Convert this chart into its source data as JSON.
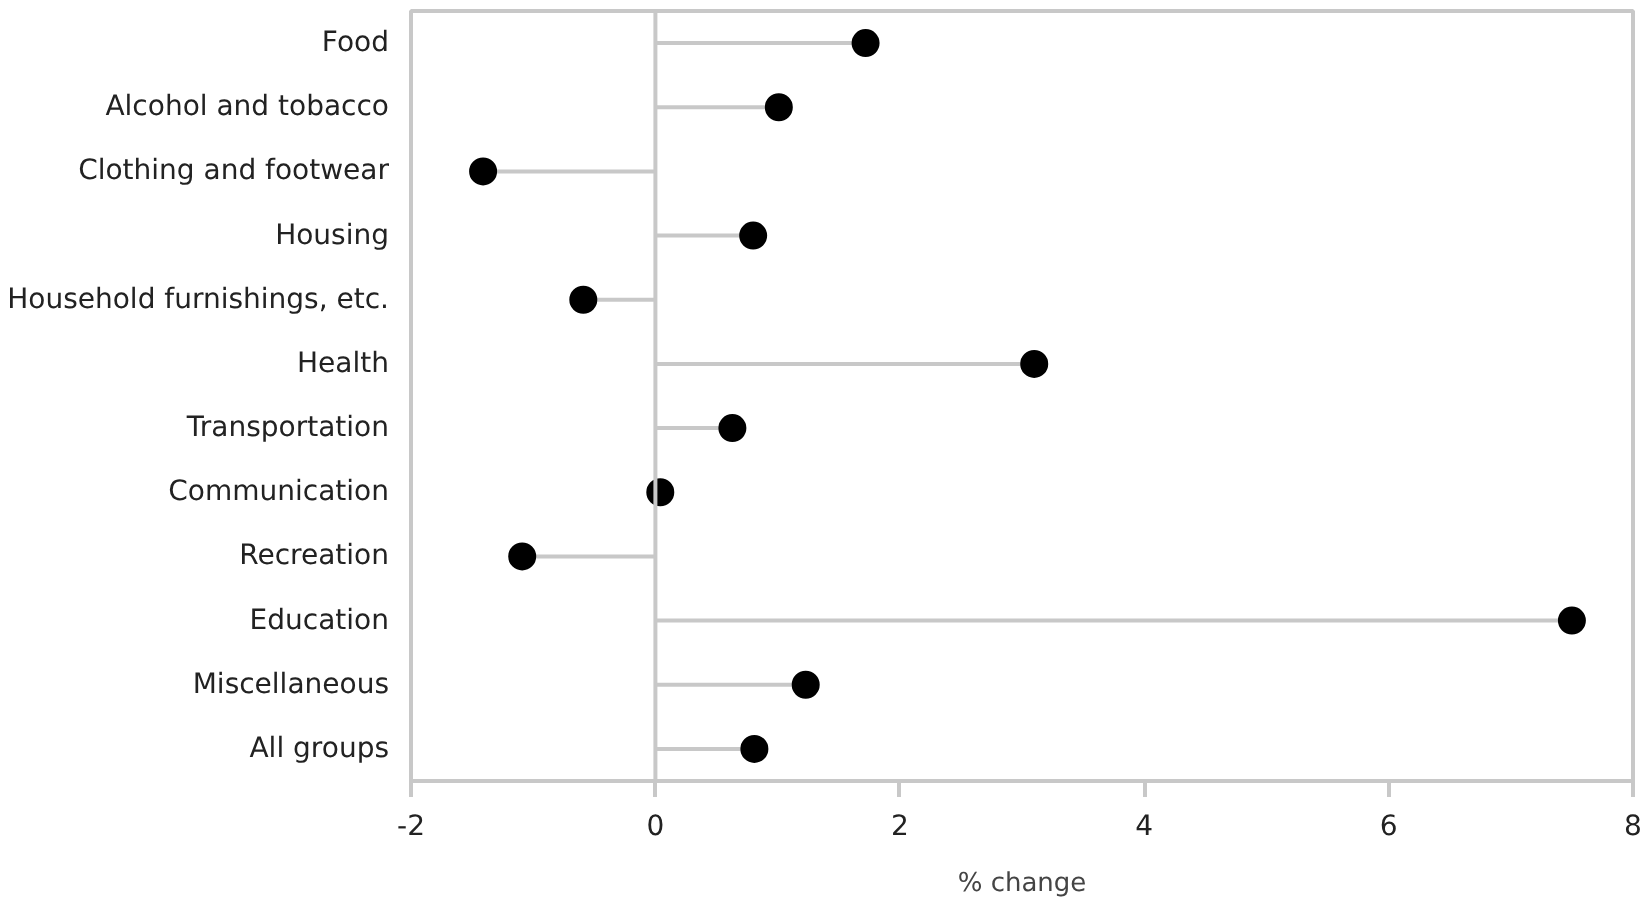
{
  "chart_data": {
    "type": "lollipop",
    "orientation": "horizontal",
    "xlabel": "% change",
    "categories": [
      "Food",
      "Alcohol and tobacco",
      "Clothing and footwear",
      "Housing",
      "Household furnishings, etc.",
      "Health",
      "Transportation",
      "Communication",
      "Recreation",
      "Education",
      "Miscellaneous",
      "All groups"
    ],
    "values": [
      1.72,
      1.01,
      -1.41,
      0.8,
      -0.59,
      3.1,
      0.63,
      0.04,
      -1.09,
      7.5,
      1.23,
      0.81
    ],
    "color": "#000000",
    "marker": "circle",
    "xlim": [
      -2,
      8
    ],
    "xticks": [
      -2,
      0,
      2,
      4,
      6,
      8
    ],
    "ref_lines": [
      {
        "axis": "x",
        "value": 0,
        "color": "#c8c8c8"
      }
    ],
    "grid": false
  }
}
